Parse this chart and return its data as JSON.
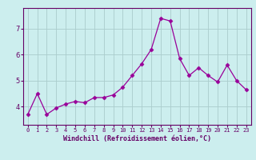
{
  "x": [
    0,
    1,
    2,
    3,
    4,
    5,
    6,
    7,
    8,
    9,
    10,
    11,
    12,
    13,
    14,
    15,
    16,
    17,
    18,
    19,
    20,
    21,
    22,
    23
  ],
  "y": [
    3.7,
    4.5,
    3.7,
    3.95,
    4.1,
    4.2,
    4.15,
    4.35,
    4.35,
    4.45,
    4.75,
    5.2,
    5.65,
    6.2,
    7.4,
    7.3,
    5.85,
    5.2,
    5.5,
    5.2,
    4.95,
    5.6,
    5.0,
    4.65
  ],
  "line_color": "#990099",
  "marker": "D",
  "marker_size": 2.5,
  "bg_color": "#cceeee",
  "grid_color": "#aacccc",
  "xlabel": "Windchill (Refroidissement éolien,°C)",
  "ylabel": "",
  "yticks": [
    4,
    5,
    6,
    7
  ],
  "xticks": [
    0,
    1,
    2,
    3,
    4,
    5,
    6,
    7,
    8,
    9,
    10,
    11,
    12,
    13,
    14,
    15,
    16,
    17,
    18,
    19,
    20,
    21,
    22,
    23
  ],
  "ylim": [
    3.3,
    7.8
  ],
  "xlim": [
    -0.5,
    23.5
  ],
  "xlabel_color": "#660066",
  "tick_color": "#660066",
  "axis_color": "#660066",
  "tick_fontsize": 6,
  "xlabel_fontsize": 6
}
